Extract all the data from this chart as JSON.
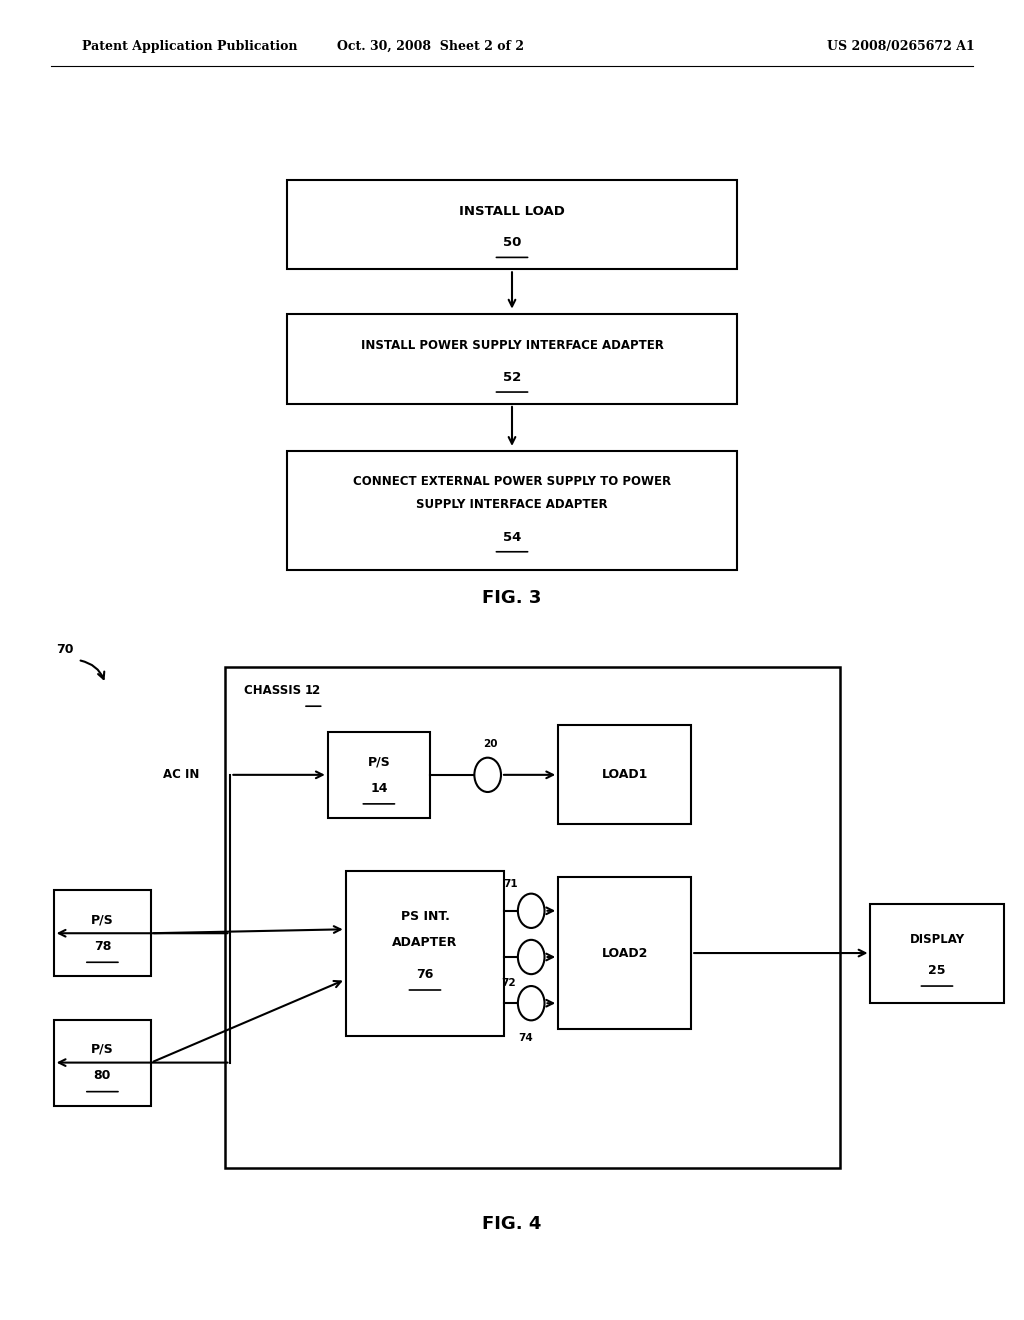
{
  "header_left": "Patent Application Publication",
  "header_mid": "Oct. 30, 2008  Sheet 2 of 2",
  "header_right": "US 2008/0265672 A1",
  "fig3_title": "FIG. 3",
  "fig4_title": "FIG. 4",
  "bg_color": "#ffffff"
}
